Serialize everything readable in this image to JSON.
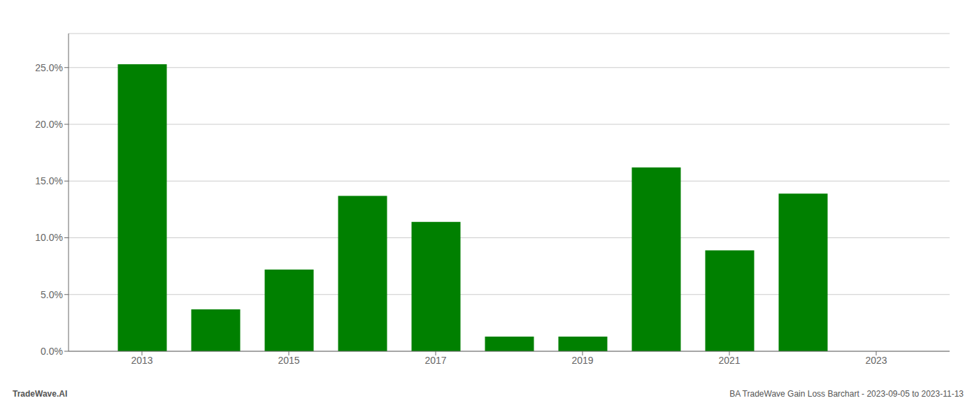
{
  "chart_data": {
    "type": "bar",
    "x": [
      2013,
      2014,
      2015,
      2016,
      2017,
      2018,
      2019,
      2020,
      2021,
      2022
    ],
    "values": [
      0.253,
      0.037,
      0.072,
      0.137,
      0.114,
      0.013,
      0.013,
      0.162,
      0.089,
      0.139
    ],
    "color": "#008000",
    "xlim": [
      2012.0,
      2024.0
    ],
    "xticks": [
      2013,
      2015,
      2017,
      2019,
      2021,
      2023
    ],
    "ylim": [
      0,
      0.28
    ],
    "yticks": [
      {
        "value": 0.0,
        "label": "0.0%"
      },
      {
        "value": 0.05,
        "label": "5.0%"
      },
      {
        "value": 0.1,
        "label": "10.0%"
      },
      {
        "value": 0.15,
        "label": "15.0%"
      },
      {
        "value": 0.2,
        "label": "20.0%"
      },
      {
        "value": 0.25,
        "label": "25.0%"
      }
    ],
    "grid": true,
    "annotations": [
      "TradeWave.AI",
      "BA TradeWave Gain Loss Barchart - 2023-09-05 to 2023-11-13"
    ]
  }
}
